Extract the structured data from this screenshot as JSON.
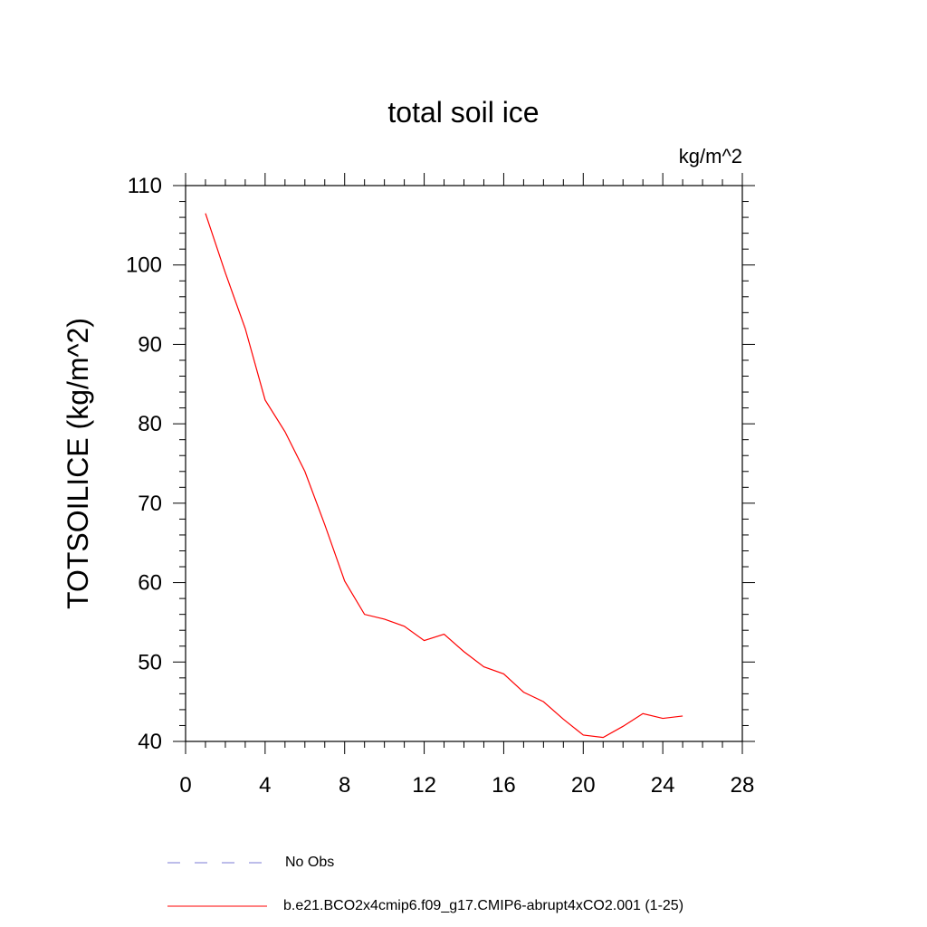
{
  "chart_data": {
    "type": "line",
    "title": "total soil ice",
    "units": "kg/m^2",
    "ylabel": "TOTSOILICE  (kg/m^2)",
    "xlabel": "",
    "xlim": [
      0,
      28
    ],
    "ylim": [
      40,
      110
    ],
    "xticks": [
      "0",
      "4",
      "8",
      "12",
      "16",
      "20",
      "24",
      "28"
    ],
    "yticks": [
      "40",
      "50",
      "60",
      "70",
      "80",
      "90",
      "100",
      "110"
    ],
    "series": [
      {
        "name": "b.e21.BCO2x4cmip6.f09_g17.CMIP6-abrupt4xCO2.001 (1-25)",
        "color": "#ff0000",
        "x": [
          1,
          2,
          3,
          4,
          5,
          6,
          7,
          8,
          9,
          10,
          11,
          12,
          13,
          14,
          15,
          16,
          17,
          18,
          19,
          20,
          21,
          22,
          23,
          24,
          25
        ],
        "y": [
          106.5,
          99,
          92,
          83,
          79,
          74,
          67.3,
          60.2,
          56,
          55.4,
          54.5,
          52.7,
          53.5,
          51.3,
          49.4,
          48.5,
          46.2,
          45,
          42.8,
          40.8,
          40.5,
          41.9,
          43.5,
          42.9,
          43.2
        ]
      }
    ],
    "legend": {
      "position": "bottom-left",
      "entries": [
        {
          "label": "No Obs",
          "style": "dashed",
          "color": "#7b7bd6"
        },
        {
          "label": "b.e21.BCO2x4cmip6.f09_g17.CMIP6-abrupt4xCO2.001 (1-25)",
          "style": "solid",
          "color": "#ff0000"
        }
      ]
    }
  }
}
